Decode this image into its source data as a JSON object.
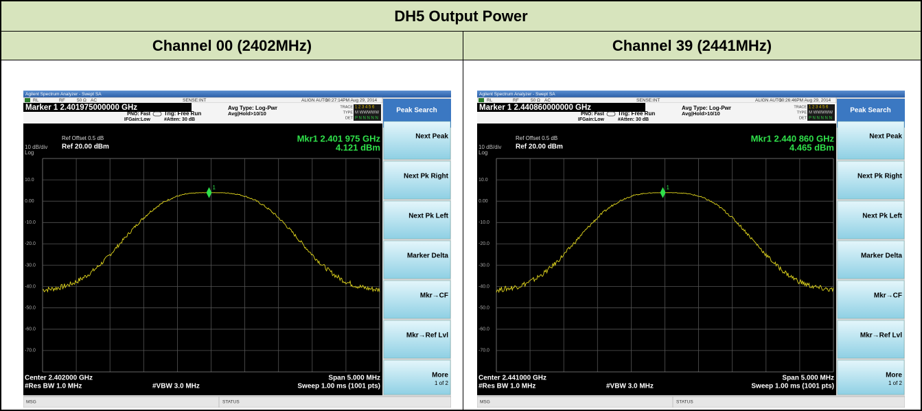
{
  "title": "DH5 Output Power",
  "columns": [
    "Channel 00 (2402MHz)",
    "Channel 39 (2441MHz)"
  ],
  "screens": [
    {
      "app_title": "Agilent Spectrum Analyzer - Swept SA",
      "rl": "RL",
      "rf": "RF",
      "impedance": "50 Ω",
      "coupling": "AC",
      "sense": "SENSE:INT",
      "align": "ALIGN AUTO",
      "timestamp": "10:27:14PM Aug 29, 2014",
      "marker": "Marker 1 2.401975000000 GHz",
      "pno": "PNO: Fast",
      "ifgain": "IFGain:Low",
      "trig": "Trig: Free Run",
      "atten": "#Atten: 30 dB",
      "avg_type": "Avg Type: Log-Pwr",
      "avg_hold": "Avg|Hold>10/10",
      "trace_label": "TRACE",
      "type_label": "TYPE",
      "det_label": "DET",
      "trace": "1 2 3 4 5 6",
      "type": "M WWWWW",
      "det": "P N N N N N",
      "ref_offset": "Ref Offset 0.5 dB",
      "scale": "10 dB/div",
      "ref": "Ref 20.00 dBm",
      "log": "Log",
      "mkr_freq": "Mkr1 2.401 975 GHz",
      "mkr_level": "4.121 dBm",
      "marker_id": "1",
      "y_labels": [
        "10.0",
        "0.00",
        "-10.0",
        "-20.0",
        "-30.0",
        "-40.0",
        "-50.0",
        "-60.0",
        "-70.0"
      ],
      "center": "Center 2.402000 GHz",
      "res_bw": "#Res BW 1.0 MHz",
      "vbw": "#VBW 3.0 MHz",
      "span": "Span 5.000 MHz",
      "sweep": "Sweep  1.00 ms (1001 pts)",
      "msg": "MSG",
      "status": "STATUS",
      "softkey_title": "Peak Search",
      "softkeys": [
        "Next Peak",
        "Next Pk Right",
        "Next Pk Left",
        "Marker Delta",
        "Mkr→CF",
        "Mkr→Ref Lvl"
      ],
      "more": "More",
      "page": "1 of 2"
    },
    {
      "app_title": "Agilent Spectrum Analyzer - Swept SA",
      "rl": "RL",
      "rf": "RF",
      "impedance": "50 Ω",
      "coupling": "AC",
      "sense": "SENSE:INT",
      "align": "ALIGN AUTO",
      "timestamp": "10:26:46PM Aug 29, 2014",
      "marker": "Marker 1 2.440860000000 GHz",
      "pno": "PNO: Fast",
      "ifgain": "IFGain:Low",
      "trig": "Trig: Free Run",
      "atten": "#Atten: 30 dB",
      "avg_type": "Avg Type: Log-Pwr",
      "avg_hold": "Avg|Hold>10/10",
      "trace_label": "TRACE",
      "type_label": "TYPE",
      "det_label": "DET",
      "trace": "1 2 3 4 5 6",
      "type": "M WWWWW",
      "det": "P N N N N N",
      "ref_offset": "Ref Offset 0.5 dB",
      "scale": "10 dB/div",
      "ref": "Ref 20.00 dBm",
      "log": "Log",
      "mkr_freq": "Mkr1 2.440 860 GHz",
      "mkr_level": "4.465 dBm",
      "marker_id": "1",
      "y_labels": [
        "10.0",
        "0.00",
        "-10.0",
        "-20.0",
        "-30.0",
        "-40.0",
        "-50.0",
        "-60.0",
        "-70.0"
      ],
      "center": "Center 2.441000 GHz",
      "res_bw": "#Res BW 1.0 MHz",
      "vbw": "#VBW 3.0 MHz",
      "span": "Span 5.000 MHz",
      "sweep": "Sweep  1.00 ms (1001 pts)",
      "msg": "MSG",
      "status": "STATUS",
      "softkey_title": "Peak Search",
      "softkeys": [
        "Next Peak",
        "Next Pk Right",
        "Next Pk Left",
        "Marker Delta",
        "Mkr→CF",
        "Mkr→Ref Lvl"
      ],
      "more": "More",
      "page": "1 of 2"
    }
  ]
}
